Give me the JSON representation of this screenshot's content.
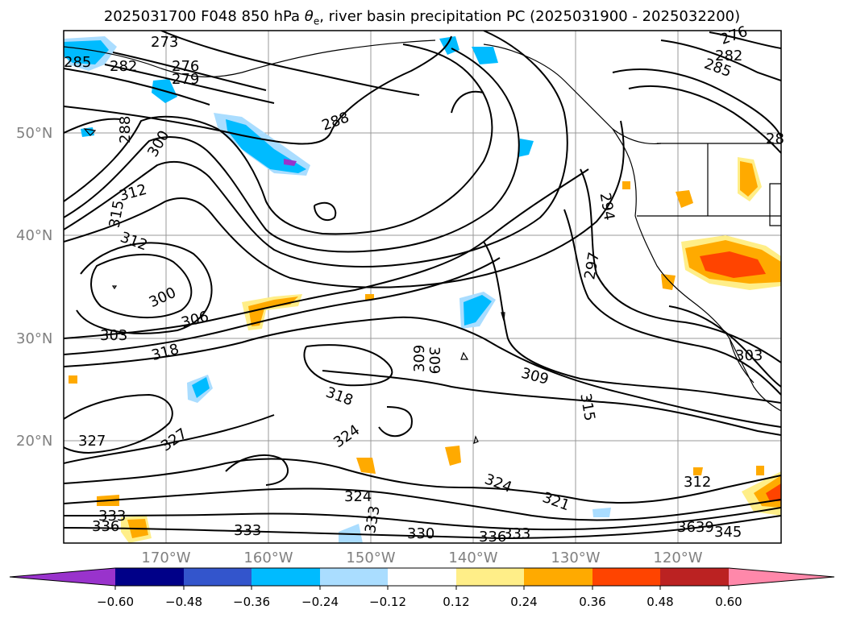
{
  "title": {
    "prefix": "2025031700 F048 850 hPa ",
    "symbol": "θ",
    "subscript": "e",
    "suffix": ", river basin precipitation PC (2025031900 - 2025032200)"
  },
  "latitude_labels": [
    "50°N",
    "40°N",
    "30°N",
    "20°N"
  ],
  "longitude_labels": [
    "170°W",
    "160°W",
    "150°W",
    "140°W",
    "130°W",
    "120°W"
  ],
  "contour_labels": [
    "273",
    "276",
    "279",
    "282",
    "285",
    "288",
    "288",
    "294",
    "297",
    "300",
    "300",
    "303",
    "303",
    "306",
    "309",
    "309",
    "309",
    "312",
    "312",
    "312",
    "315",
    "315",
    "318",
    "318",
    "321",
    "324",
    "324",
    "324",
    "327",
    "327",
    "330",
    "333",
    "333",
    "333",
    "333",
    "336",
    "336",
    "345",
    "276",
    "282",
    "285",
    "28",
    "3639"
  ],
  "colorbar": {
    "colors": [
      "#9933cc",
      "#000088",
      "#3355cc",
      "#00bbff",
      "#aaddff",
      "#ffffff",
      "#ffee88",
      "#ffaa00",
      "#ff4400",
      "#bb2222",
      "#ff88aa"
    ],
    "tick_labels": [
      "−0.60",
      "−0.48",
      "−0.36",
      "−0.24",
      "−0.12",
      "0.12",
      "0.24",
      "0.36",
      "0.48",
      "0.60"
    ]
  },
  "legend_colors": {
    "negative_fill": "#00bbff",
    "negative_light": "#aaddff",
    "positive_light": "#ffee88",
    "positive_fill": "#ffaa00",
    "positive_strong": "#ff4400"
  }
}
